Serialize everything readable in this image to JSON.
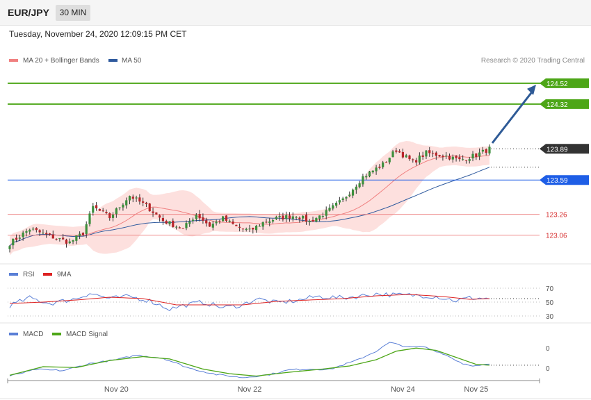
{
  "header": {
    "symbol": "EUR/JPY",
    "timeframe": "30 MIN",
    "datetime": "Tuesday, November 24, 2020 12:09:15 PM CET"
  },
  "legend": {
    "ma20_bb": "MA 20 + Bollinger Bands",
    "ma50": "MA 50",
    "credit": "Research © 2020 Trading Central"
  },
  "rsi_legend": {
    "rsi": "RSI",
    "ma9": "9MA"
  },
  "macd_legend": {
    "macd": "MACD",
    "signal": "MACD Signal"
  },
  "colors": {
    "bull": "#3c8f3c",
    "bear": "#b8252a",
    "bollinger_fill": "#fde0de",
    "ma20": "#f08080",
    "ma50": "#2f5a9e",
    "target": "#4da617",
    "pivot": "#1e5ee6",
    "support": "#d62f2f",
    "current": "#333333",
    "arrow": "#2e5a96",
    "rsi": "#5a7fd6",
    "rsi_ma": "#dd2222",
    "macd": "#5a7fd6",
    "macd_signal": "#4da617"
  },
  "chart_data": {
    "type": "candlestick",
    "price_levels": [
      {
        "value": 124.52,
        "label": "124.52",
        "kind": "target"
      },
      {
        "value": 124.32,
        "label": "124.32",
        "kind": "target"
      },
      {
        "value": 123.89,
        "label": "123.89",
        "kind": "current"
      },
      {
        "value": 123.59,
        "label": "123.59",
        "kind": "pivot"
      },
      {
        "value": 123.26,
        "label": "123.26",
        "kind": "support"
      },
      {
        "value": 123.06,
        "label": "123.06",
        "kind": "support"
      }
    ],
    "price_range": [
      122.81,
      124.8
    ],
    "x_labels": [
      "Nov 20",
      "Nov 22",
      "Nov 24",
      "Nov 25"
    ],
    "x_label_index": [
      32,
      72,
      118,
      140
    ],
    "candle_count": 145,
    "ohlc_anchors": [
      [
        0,
        122.98
      ],
      [
        6,
        123.12
      ],
      [
        12,
        123.05
      ],
      [
        18,
        122.99
      ],
      [
        22,
        123.08
      ],
      [
        25,
        123.33
      ],
      [
        30,
        123.23
      ],
      [
        36,
        123.44
      ],
      [
        41,
        123.34
      ],
      [
        46,
        123.2
      ],
      [
        52,
        123.12
      ],
      [
        56,
        123.26
      ],
      [
        60,
        123.15
      ],
      [
        64,
        123.22
      ],
      [
        68,
        123.14
      ],
      [
        72,
        123.1
      ],
      [
        76,
        123.18
      ],
      [
        80,
        123.22
      ],
      [
        86,
        123.25
      ],
      [
        90,
        123.19
      ],
      [
        95,
        123.28
      ],
      [
        100,
        123.4
      ],
      [
        106,
        123.62
      ],
      [
        112,
        123.74
      ],
      [
        116,
        123.88
      ],
      [
        121,
        123.76
      ],
      [
        125,
        123.85
      ],
      [
        131,
        123.82
      ],
      [
        135,
        123.78
      ],
      [
        140,
        123.83
      ],
      [
        144,
        123.89
      ]
    ],
    "rsi": {
      "levels": [
        70,
        50,
        30
      ],
      "range": [
        25,
        75
      ],
      "anchors": [
        [
          0,
          45
        ],
        [
          6,
          56
        ],
        [
          12,
          48
        ],
        [
          20,
          55
        ],
        [
          24,
          63
        ],
        [
          30,
          55
        ],
        [
          36,
          58
        ],
        [
          42,
          52
        ],
        [
          48,
          40
        ],
        [
          52,
          45
        ],
        [
          58,
          50
        ],
        [
          64,
          42
        ],
        [
          70,
          46
        ],
        [
          74,
          55
        ],
        [
          80,
          49
        ],
        [
          86,
          52
        ],
        [
          92,
          58
        ],
        [
          100,
          56
        ],
        [
          104,
          58
        ],
        [
          110,
          62
        ],
        [
          116,
          60
        ],
        [
          122,
          60
        ],
        [
          128,
          58
        ],
        [
          134,
          52
        ],
        [
          138,
          56
        ],
        [
          144,
          55
        ]
      ],
      "ma_anchors": [
        [
          0,
          48
        ],
        [
          10,
          50
        ],
        [
          20,
          53
        ],
        [
          30,
          57
        ],
        [
          40,
          55
        ],
        [
          50,
          46
        ],
        [
          60,
          46
        ],
        [
          70,
          46
        ],
        [
          80,
          51
        ],
        [
          90,
          53
        ],
        [
          100,
          55
        ],
        [
          110,
          59
        ],
        [
          120,
          61
        ],
        [
          130,
          58
        ],
        [
          138,
          54
        ],
        [
          144,
          55
        ]
      ]
    },
    "macd": {
      "levels": [
        0,
        0
      ],
      "anchors": [
        [
          0,
          -0.12
        ],
        [
          8,
          0.05
        ],
        [
          16,
          0.02
        ],
        [
          24,
          0.2
        ],
        [
          32,
          0.3
        ],
        [
          38,
          0.42
        ],
        [
          46,
          0.34
        ],
        [
          54,
          0.08
        ],
        [
          62,
          -0.08
        ],
        [
          70,
          -0.16
        ],
        [
          78,
          -0.08
        ],
        [
          84,
          0.04
        ],
        [
          90,
          0.06
        ],
        [
          96,
          0.05
        ],
        [
          104,
          0.28
        ],
        [
          110,
          0.52
        ],
        [
          114,
          0.74
        ],
        [
          120,
          0.62
        ],
        [
          124,
          0.64
        ],
        [
          130,
          0.46
        ],
        [
          136,
          0.2
        ],
        [
          140,
          0.14
        ],
        [
          144,
          0.18
        ]
      ],
      "signal_anchors": [
        [
          0,
          -0.1
        ],
        [
          10,
          0.12
        ],
        [
          20,
          0.1
        ],
        [
          30,
          0.28
        ],
        [
          40,
          0.38
        ],
        [
          48,
          0.32
        ],
        [
          58,
          0.06
        ],
        [
          66,
          -0.06
        ],
        [
          74,
          -0.12
        ],
        [
          84,
          -0.02
        ],
        [
          94,
          0.06
        ],
        [
          102,
          0.14
        ],
        [
          110,
          0.3
        ],
        [
          116,
          0.52
        ],
        [
          122,
          0.6
        ],
        [
          128,
          0.54
        ],
        [
          134,
          0.36
        ],
        [
          140,
          0.18
        ],
        [
          144,
          0.16
        ]
      ]
    }
  }
}
